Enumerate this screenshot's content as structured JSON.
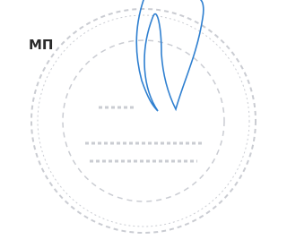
{
  "document": {
    "label": "МП"
  }
}
